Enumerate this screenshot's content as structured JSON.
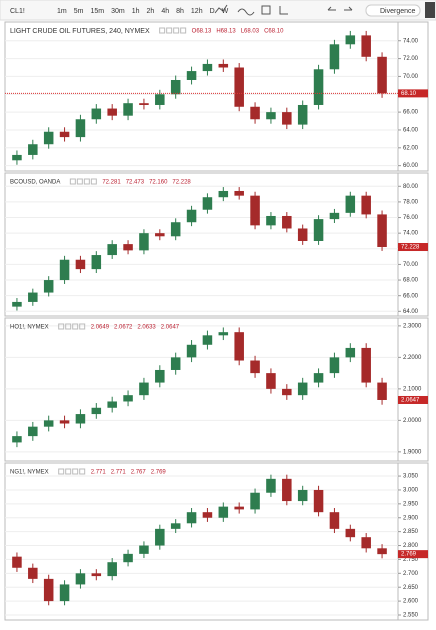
{
  "toolbar": {
    "symbol": "CL1!",
    "intervals": [
      "1m",
      "5m",
      "15m",
      "30m",
      "1h",
      "2h",
      "4h",
      "8h",
      "12h",
      "D",
      "W"
    ],
    "indicator": "Divergence"
  },
  "chart_data": [
    {
      "type": "candlestick",
      "title": "LIGHT CRUDE OIL FUTURES, 240, NYMEX",
      "ohlc_labels": [
        "O68.13",
        "H68.13",
        "L68.03",
        "C68.10"
      ],
      "last": {
        "value": 68.1,
        "label": "68.10"
      },
      "price_line": true,
      "up_color": "#2e7d4f",
      "down_color": "#a52a2a",
      "ylim": [
        59.4,
        76.1
      ],
      "yticks": [
        {
          "value": 60,
          "label": "60.00"
        },
        {
          "value": 62,
          "label": "62.00"
        },
        {
          "value": 64,
          "label": "64.00"
        },
        {
          "value": 66,
          "label": "66.00"
        },
        {
          "value": 68,
          "label": "68.00"
        },
        {
          "value": 70,
          "label": "70.00"
        },
        {
          "value": 72,
          "label": "72.00"
        },
        {
          "value": 74,
          "label": "74.00"
        }
      ],
      "open": [
        60.6,
        61.2,
        62.4,
        63.8,
        63.2,
        65.2,
        66.4,
        65.6,
        67.0,
        66.8,
        68.0,
        69.6,
        70.6,
        71.4,
        71.0,
        66.6,
        65.2,
        66.0,
        64.6,
        66.8,
        70.8,
        73.6,
        74.6,
        72.2
      ],
      "high": [
        61.7,
        62.9,
        64.3,
        64.3,
        65.7,
        66.9,
        66.9,
        67.5,
        67.5,
        68.5,
        70.1,
        71.1,
        71.9,
        71.9,
        71.5,
        67.1,
        66.5,
        66.5,
        67.3,
        71.3,
        74.1,
        75.1,
        75.1,
        72.7
      ],
      "low": [
        60.1,
        60.7,
        61.9,
        62.7,
        62.7,
        64.7,
        65.1,
        65.1,
        66.3,
        66.3,
        67.5,
        69.1,
        70.1,
        70.5,
        66.1,
        64.7,
        64.7,
        64.1,
        64.1,
        66.3,
        70.3,
        73.1,
        71.7,
        67.6
      ],
      "close": [
        61.2,
        62.4,
        63.8,
        63.2,
        65.2,
        66.4,
        65.6,
        67.0,
        66.8,
        68.0,
        69.6,
        70.6,
        71.4,
        71.0,
        66.6,
        65.2,
        66.0,
        64.6,
        66.8,
        70.8,
        73.6,
        74.6,
        72.2,
        68.1
      ]
    },
    {
      "type": "candlestick",
      "title": "BCOUSD, OANDA",
      "ohlc_labels": [
        "72.281",
        "72.473",
        "72.160",
        "72.228"
      ],
      "last": {
        "value": 72.228,
        "label": "72.228"
      },
      "up_color": "#2e7d4f",
      "down_color": "#a52a2a",
      "ylim": [
        63.4,
        81.7
      ],
      "yticks": [
        {
          "value": 64,
          "label": "64.00"
        },
        {
          "value": 66,
          "label": "66.00"
        },
        {
          "value": 68,
          "label": "68.00"
        },
        {
          "value": 70,
          "label": "70.00"
        },
        {
          "value": 72,
          "label": "72.00"
        },
        {
          "value": 74,
          "label": "74.00"
        },
        {
          "value": 76,
          "label": "76.00"
        },
        {
          "value": 78,
          "label": "78.00"
        },
        {
          "value": 80,
          "label": "80.00"
        }
      ],
      "open": [
        64.6,
        65.2,
        66.4,
        68.0,
        70.6,
        69.4,
        71.2,
        72.6,
        71.8,
        74.0,
        73.6,
        75.4,
        77.0,
        78.6,
        79.4,
        78.8,
        75.0,
        76.2,
        74.6,
        73.0,
        75.8,
        76.6,
        78.8,
        76.4
      ],
      "high": [
        65.7,
        66.9,
        68.5,
        71.1,
        71.1,
        71.7,
        73.1,
        73.1,
        74.5,
        74.5,
        75.9,
        77.5,
        79.1,
        79.9,
        79.9,
        79.3,
        76.7,
        76.7,
        75.1,
        76.3,
        77.1,
        79.3,
        79.3,
        76.9
      ],
      "low": [
        64.1,
        64.7,
        65.9,
        67.5,
        68.9,
        68.9,
        70.7,
        71.3,
        71.3,
        73.1,
        73.1,
        74.9,
        76.5,
        78.1,
        78.3,
        74.5,
        74.5,
        74.1,
        72.5,
        72.5,
        75.3,
        76.1,
        75.9,
        71.728
      ],
      "close": [
        65.2,
        66.4,
        68.0,
        70.6,
        69.4,
        71.2,
        72.6,
        71.8,
        74.0,
        73.6,
        75.4,
        77.0,
        78.6,
        79.4,
        78.8,
        75.0,
        76.2,
        74.6,
        73.0,
        75.8,
        76.6,
        78.8,
        76.4,
        72.228
      ]
    },
    {
      "type": "candlestick",
      "title": "HO1!, NYMEX",
      "ohlc_labels": [
        "2.0649",
        "2.0672",
        "2.0633",
        "2.0647"
      ],
      "last": {
        "value": 2.0647,
        "label": "2.0647"
      },
      "up_color": "#2e7d4f",
      "down_color": "#a52a2a",
      "ylim": [
        1.871,
        2.325
      ],
      "yticks": [
        {
          "value": 1.9,
          "label": "1.9000"
        },
        {
          "value": 2,
          "label": "2.0000"
        },
        {
          "value": 2.1,
          "label": "2.1000"
        },
        {
          "value": 2.2,
          "label": "2.2000"
        },
        {
          "value": 2.3,
          "label": "2.3000"
        }
      ],
      "open": [
        1.93,
        1.95,
        1.98,
        2.0,
        1.99,
        2.02,
        2.04,
        2.06,
        2.08,
        2.12,
        2.16,
        2.2,
        2.24,
        2.27,
        2.28,
        2.19,
        2.15,
        2.1,
        2.08,
        2.12,
        2.15,
        2.2,
        2.23,
        2.12
      ],
      "high": [
        1.965,
        1.995,
        2.015,
        2.015,
        2.035,
        2.055,
        2.075,
        2.095,
        2.135,
        2.175,
        2.215,
        2.255,
        2.285,
        2.295,
        2.295,
        2.205,
        2.165,
        2.115,
        2.135,
        2.165,
        2.215,
        2.245,
        2.245,
        2.135
      ],
      "low": [
        1.915,
        1.935,
        1.965,
        1.975,
        1.975,
        2.005,
        2.025,
        2.045,
        2.065,
        2.105,
        2.145,
        2.185,
        2.225,
        2.255,
        2.175,
        2.135,
        2.085,
        2.065,
        2.065,
        2.105,
        2.135,
        2.185,
        2.105,
        2.0497
      ],
      "close": [
        1.95,
        1.98,
        2.0,
        1.99,
        2.02,
        2.04,
        2.06,
        2.08,
        2.12,
        2.16,
        2.2,
        2.24,
        2.27,
        2.28,
        2.19,
        2.15,
        2.1,
        2.08,
        2.12,
        2.15,
        2.2,
        2.23,
        2.12,
        2.0647
      ]
    },
    {
      "type": "candlestick",
      "title": "NG1!, NYMEX",
      "ohlc_labels": [
        "2.771",
        "2.771",
        "2.767",
        "2.769"
      ],
      "last": {
        "value": 2.769,
        "label": "2.769"
      },
      "up_color": "#2e7d4f",
      "down_color": "#a52a2a",
      "ylim": [
        2.532,
        3.097
      ],
      "yticks": [
        {
          "value": 2.55,
          "label": "2.550"
        },
        {
          "value": 2.6,
          "label": "2.600"
        },
        {
          "value": 2.65,
          "label": "2.650"
        },
        {
          "value": 2.7,
          "label": "2.700"
        },
        {
          "value": 2.75,
          "label": "2.750"
        },
        {
          "value": 2.8,
          "label": "2.800"
        },
        {
          "value": 2.85,
          "label": "2.850"
        },
        {
          "value": 2.9,
          "label": "2.900"
        },
        {
          "value": 2.95,
          "label": "2.950"
        },
        {
          "value": 3,
          "label": "3.000"
        },
        {
          "value": 3.05,
          "label": "3.050"
        }
      ],
      "open": [
        2.76,
        2.72,
        2.68,
        2.6,
        2.66,
        2.7,
        2.69,
        2.74,
        2.77,
        2.8,
        2.86,
        2.88,
        2.92,
        2.9,
        2.94,
        2.93,
        2.99,
        3.04,
        2.96,
        3.0,
        2.92,
        2.86,
        2.83,
        2.79
      ],
      "high": [
        2.775,
        2.735,
        2.695,
        2.675,
        2.715,
        2.715,
        2.755,
        2.785,
        2.815,
        2.875,
        2.895,
        2.935,
        2.935,
        2.955,
        2.955,
        3.005,
        3.055,
        3.055,
        3.015,
        3.015,
        2.935,
        2.875,
        2.845,
        2.805
      ],
      "low": [
        2.705,
        2.665,
        2.585,
        2.585,
        2.645,
        2.675,
        2.675,
        2.725,
        2.755,
        2.785,
        2.845,
        2.865,
        2.885,
        2.885,
        2.915,
        2.915,
        2.975,
        2.945,
        2.945,
        2.905,
        2.845,
        2.815,
        2.775,
        2.754
      ],
      "close": [
        2.72,
        2.68,
        2.6,
        2.66,
        2.7,
        2.69,
        2.74,
        2.77,
        2.8,
        2.86,
        2.88,
        2.92,
        2.9,
        2.94,
        2.93,
        2.99,
        3.04,
        2.96,
        3.0,
        2.92,
        2.86,
        2.83,
        2.79,
        2.769
      ]
    }
  ]
}
